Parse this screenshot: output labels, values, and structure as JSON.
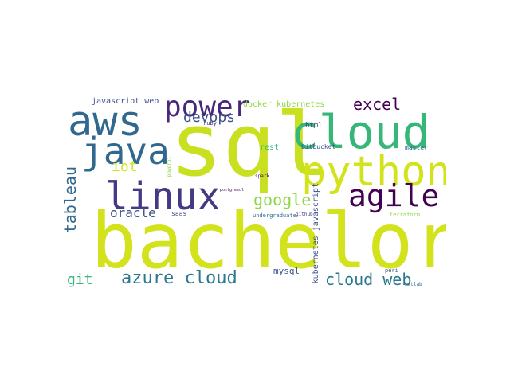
{
  "word_cloud": {
    "words": {
      "bachelor": "bachelor",
      "sql": "sql",
      "cloud_big": "cloud",
      "python": "python",
      "aws": "aws",
      "java": "java",
      "linux": "linux",
      "power": "power",
      "agile": "agile",
      "excel": "excel",
      "devops": "devops",
      "iot": "iot",
      "google": "google",
      "oracle": "oracle",
      "tableau": "tableau",
      "azure_cloud": "azure cloud",
      "cloud_web": "cloud web",
      "git": "git",
      "mysql": "mysql",
      "javascript_web": "javascript web",
      "docker_kubernetes": "docker kubernetes",
      "html": "html",
      "ruby": "ruby",
      "rest": "rest",
      "bitbucket": "bitbucket",
      "master": "master",
      "powerbi": "powerbi",
      "spark": "spark",
      "postgresql": "postgresql",
      "saas": "saas",
      "undergraduate": "undergraduate",
      "github": "github",
      "kubernetes_javascript": "kubernetes javascript",
      "terraform": "terraform",
      "peri": "peri",
      "matlab": "matlab"
    },
    "colors": {
      "yellow": "#d2e21b",
      "green": "#35b779",
      "teal": "#21918c",
      "blue": "#31688e",
      "indigo": "#443983",
      "purple": "#440154",
      "lime": "#90d743",
      "slate": "#3b528b"
    }
  }
}
